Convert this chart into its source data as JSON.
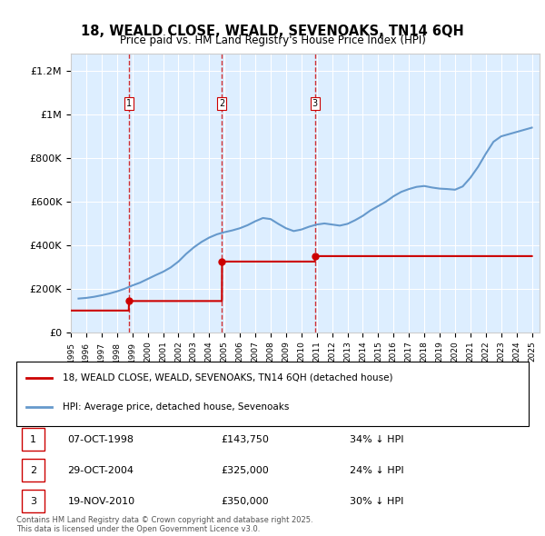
{
  "title": "18, WEALD CLOSE, WEALD, SEVENOAKS, TN14 6QH",
  "subtitle": "Price paid vs. HM Land Registry's House Price Index (HPI)",
  "legend_line1": "18, WEALD CLOSE, WEALD, SEVENOAKS, TN14 6QH (detached house)",
  "legend_line2": "HPI: Average price, detached house, Sevenoaks",
  "footer": "Contains HM Land Registry data © Crown copyright and database right 2025.\nThis data is licensed under the Open Government Licence v3.0.",
  "transactions": [
    {
      "num": 1,
      "date": "07-OCT-1998",
      "price": 143750,
      "label": "34% ↓ HPI",
      "year": 1998.77
    },
    {
      "num": 2,
      "date": "29-OCT-2004",
      "price": 325000,
      "label": "24% ↓ HPI",
      "year": 2004.83
    },
    {
      "num": 3,
      "date": "19-NOV-2010",
      "price": 350000,
      "label": "30% ↓ HPI",
      "year": 2010.88
    }
  ],
  "hpi_data": {
    "years": [
      1995.5,
      1996.0,
      1996.5,
      1997.0,
      1997.5,
      1998.0,
      1998.5,
      1999.0,
      1999.5,
      2000.0,
      2000.5,
      2001.0,
      2001.5,
      2002.0,
      2002.5,
      2003.0,
      2003.5,
      2004.0,
      2004.5,
      2005.0,
      2005.5,
      2006.0,
      2006.5,
      2007.0,
      2007.5,
      2008.0,
      2008.5,
      2009.0,
      2009.5,
      2010.0,
      2010.5,
      2011.0,
      2011.5,
      2012.0,
      2012.5,
      2013.0,
      2013.5,
      2014.0,
      2014.5,
      2015.0,
      2015.5,
      2016.0,
      2016.5,
      2017.0,
      2017.5,
      2018.0,
      2018.5,
      2019.0,
      2019.5,
      2020.0,
      2020.5,
      2021.0,
      2021.5,
      2022.0,
      2022.5,
      2023.0,
      2023.5,
      2024.0,
      2024.5,
      2025.0
    ],
    "values": [
      155000,
      158000,
      163000,
      170000,
      178000,
      188000,
      200000,
      215000,
      228000,
      245000,
      262000,
      278000,
      298000,
      325000,
      360000,
      390000,
      415000,
      435000,
      450000,
      460000,
      468000,
      478000,
      492000,
      510000,
      525000,
      520000,
      498000,
      478000,
      465000,
      472000,
      485000,
      495000,
      500000,
      495000,
      490000,
      498000,
      515000,
      535000,
      560000,
      580000,
      600000,
      625000,
      645000,
      658000,
      668000,
      672000,
      665000,
      660000,
      658000,
      655000,
      670000,
      710000,
      760000,
      820000,
      875000,
      900000,
      910000,
      920000,
      930000,
      940000
    ]
  },
  "price_data": {
    "years": [
      1995.0,
      1998.77,
      1998.78,
      2004.83,
      2004.84,
      2010.88,
      2010.89,
      2025.0
    ],
    "values": [
      100000,
      100000,
      143750,
      143750,
      325000,
      325000,
      350000,
      350000
    ]
  },
  "red_line_color": "#cc0000",
  "blue_line_color": "#6699cc",
  "background_color": "#ddeeff",
  "plot_bg": "#ffffff",
  "ylim": [
    0,
    1280000
  ],
  "xlim": [
    1995,
    2025.5
  ],
  "yticks": [
    0,
    200000,
    400000,
    600000,
    800000,
    1000000,
    1200000
  ],
  "ytick_labels": [
    "£0",
    "£200K",
    "£400K",
    "£600K",
    "£800K",
    "£1M",
    "£1.2M"
  ]
}
